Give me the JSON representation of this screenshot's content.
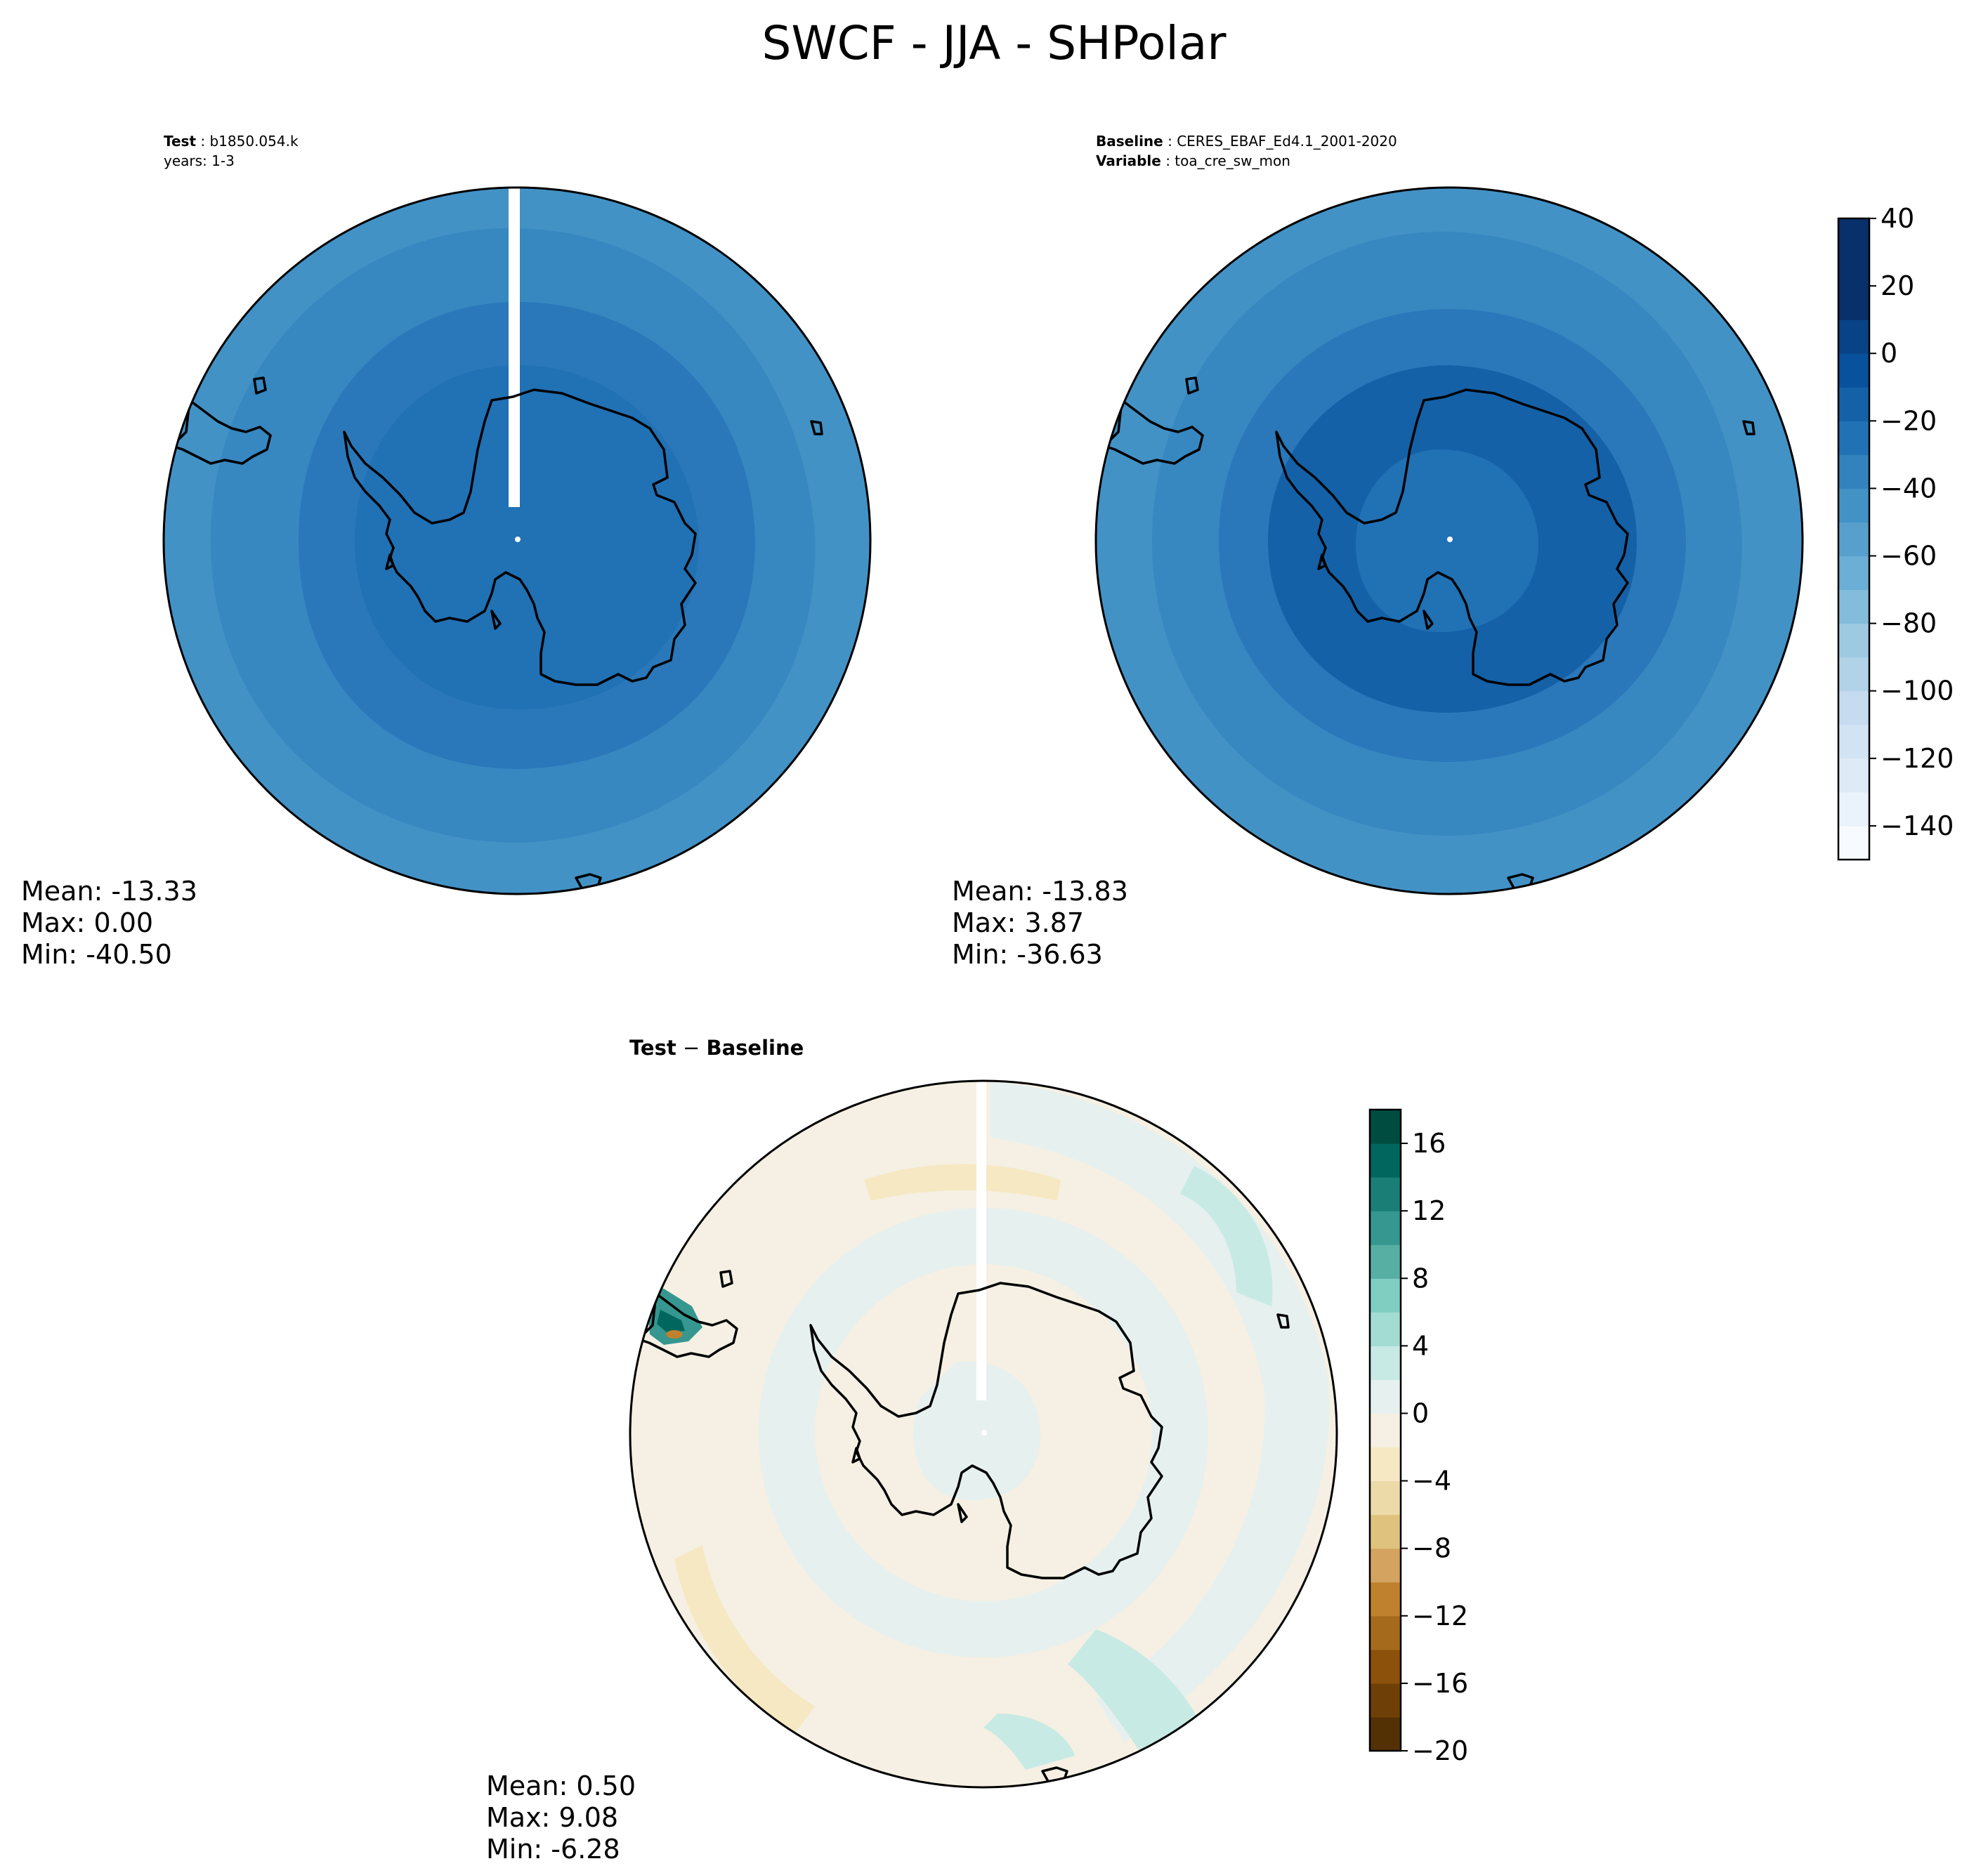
{
  "figure": {
    "title": "SWCF - JJA - SHPolar"
  },
  "panels": {
    "test": {
      "label_bold": "Test",
      "label_sep": " : ",
      "label_value": "b1850.054.k",
      "years": "years: 1-3",
      "mean": "Mean: -13.33",
      "max": "Max:  0.00",
      "min": "Min: -40.50"
    },
    "baseline": {
      "label_bold": "Baseline",
      "label_sep": " : ",
      "label_value": "CERES_EBAF_Ed4.1_2001-2020",
      "var_bold": "Variable",
      "var_sep": " : ",
      "var_value": "toa_cre_sw_mon",
      "mean": "Mean: -13.83",
      "max": "Max:  3.87",
      "min": "Min: -36.63"
    },
    "diff": {
      "title_test": "Test",
      "title_minus": " − ",
      "title_base": "Baseline",
      "mean": "Mean:  0.50",
      "max": "Max:  9.08",
      "min": "Min: -6.28"
    }
  },
  "chart_data": [
    {
      "type": "heatmap",
      "panel": "test",
      "projection": "south-polar-stereographic",
      "stats": {
        "mean": -13.33,
        "max": 0.0,
        "min": -40.5
      },
      "levels": [
        -150,
        -140,
        -130,
        -120,
        -110,
        -100,
        -90,
        -80,
        -70,
        -60,
        -50,
        -40,
        -30,
        -20,
        -10,
        0,
        10,
        20,
        30,
        40
      ],
      "colormap": "Blues",
      "zones": [
        {
          "region": "outer ring (~45S-50S)",
          "value": -35
        },
        {
          "region": "middle ring (~55S-60S)",
          "value": -25
        },
        {
          "region": "inner ring (~60S-65S)",
          "value": -15
        },
        {
          "region": "interior (~65S-90S)",
          "value": -12
        }
      ]
    },
    {
      "type": "heatmap",
      "panel": "baseline",
      "projection": "south-polar-stereographic",
      "stats": {
        "mean": -13.83,
        "max": 3.87,
        "min": -36.63
      },
      "levels": [
        -150,
        -140,
        -130,
        -120,
        -110,
        -100,
        -90,
        -80,
        -70,
        -60,
        -50,
        -40,
        -30,
        -20,
        -10,
        0,
        10,
        20,
        30,
        40
      ],
      "colormap": "Blues",
      "zones": [
        {
          "region": "outer ring (~45S-50S)",
          "value": -35
        },
        {
          "region": "middle ring (~55S-60S)",
          "value": -25
        },
        {
          "region": "inner ring (~60S-70S)",
          "value": -15
        },
        {
          "region": "coastal Antarctica",
          "value": -5
        },
        {
          "region": "pole",
          "value": -12
        }
      ],
      "colorbar": {
        "ticks": [
          40,
          20,
          0,
          -20,
          -40,
          -60,
          -80,
          -100,
          -120,
          -140
        ],
        "tick_labels": [
          "40",
          "20",
          "0",
          "−20",
          "−40",
          "−60",
          "−80",
          "−100",
          "−120",
          "−140"
        ],
        "range": [
          -150,
          40
        ]
      }
    },
    {
      "type": "heatmap",
      "panel": "diff",
      "projection": "south-polar-stereographic",
      "stats": {
        "mean": 0.5,
        "max": 9.08,
        "min": -6.28
      },
      "levels": [
        -20,
        -18,
        -16,
        -14,
        -12,
        -10,
        -8,
        -6,
        -4,
        -2,
        0,
        2,
        4,
        6,
        8,
        10,
        12,
        14,
        16,
        18
      ],
      "colormap": "BrBG",
      "zones": [
        {
          "region": "most of domain",
          "value": 0
        },
        {
          "region": "scattered ocean bands",
          "value": 2
        },
        {
          "region": "scattered ocean bands",
          "value": -2
        },
        {
          "region": "South America tip",
          "value": 9
        }
      ],
      "colorbar": {
        "ticks": [
          16,
          12,
          8,
          4,
          0,
          -4,
          -8,
          -12,
          -16,
          -20
        ],
        "tick_labels": [
          "16",
          "12",
          "8",
          "4",
          "0",
          "−4",
          "−8",
          "−12",
          "−16",
          "−20"
        ],
        "range": [
          -20,
          18
        ]
      }
    }
  ],
  "colors": {
    "blues": [
      "#f7fbff",
      "#eaf3fb",
      "#deebf7",
      "#d2e3f3",
      "#c6dbef",
      "#b2d2e8",
      "#9ecae1",
      "#84bcdb",
      "#6baed6",
      "#57a0ce",
      "#4292c6",
      "#3282be",
      "#2171b5",
      "#1461a8",
      "#08519c",
      "#084387",
      "#08306b"
    ],
    "brbg": [
      "#543005",
      "#6f3f08",
      "#8c510a",
      "#a56a1c",
      "#bf812d",
      "#d3a35f",
      "#dfc27d",
      "#ecdaa9",
      "#f6e8c3",
      "#f5f0e3",
      "#e6f0ef",
      "#c7eae5",
      "#a3dcd3",
      "#80cdc1",
      "#57afa4",
      "#35978f",
      "#1a7e76",
      "#01665e",
      "#004c40",
      "#003c30"
    ],
    "mapfill_test": {
      "outer": "#4292c6",
      "mid": "#3787c1",
      "inner": "#2a78ba",
      "core": "#2171b5"
    },
    "mapfill_base": {
      "outer": "#4292c6",
      "mid": "#3787c1",
      "inner": "#2a78ba",
      "core": "#2171b5",
      "coast": "#1461a8"
    },
    "mapfill_diff": {
      "base": "#eef3ee",
      "warm": "#f6e8c3",
      "cool": "#c7eae5",
      "strong": "#01665e"
    }
  }
}
